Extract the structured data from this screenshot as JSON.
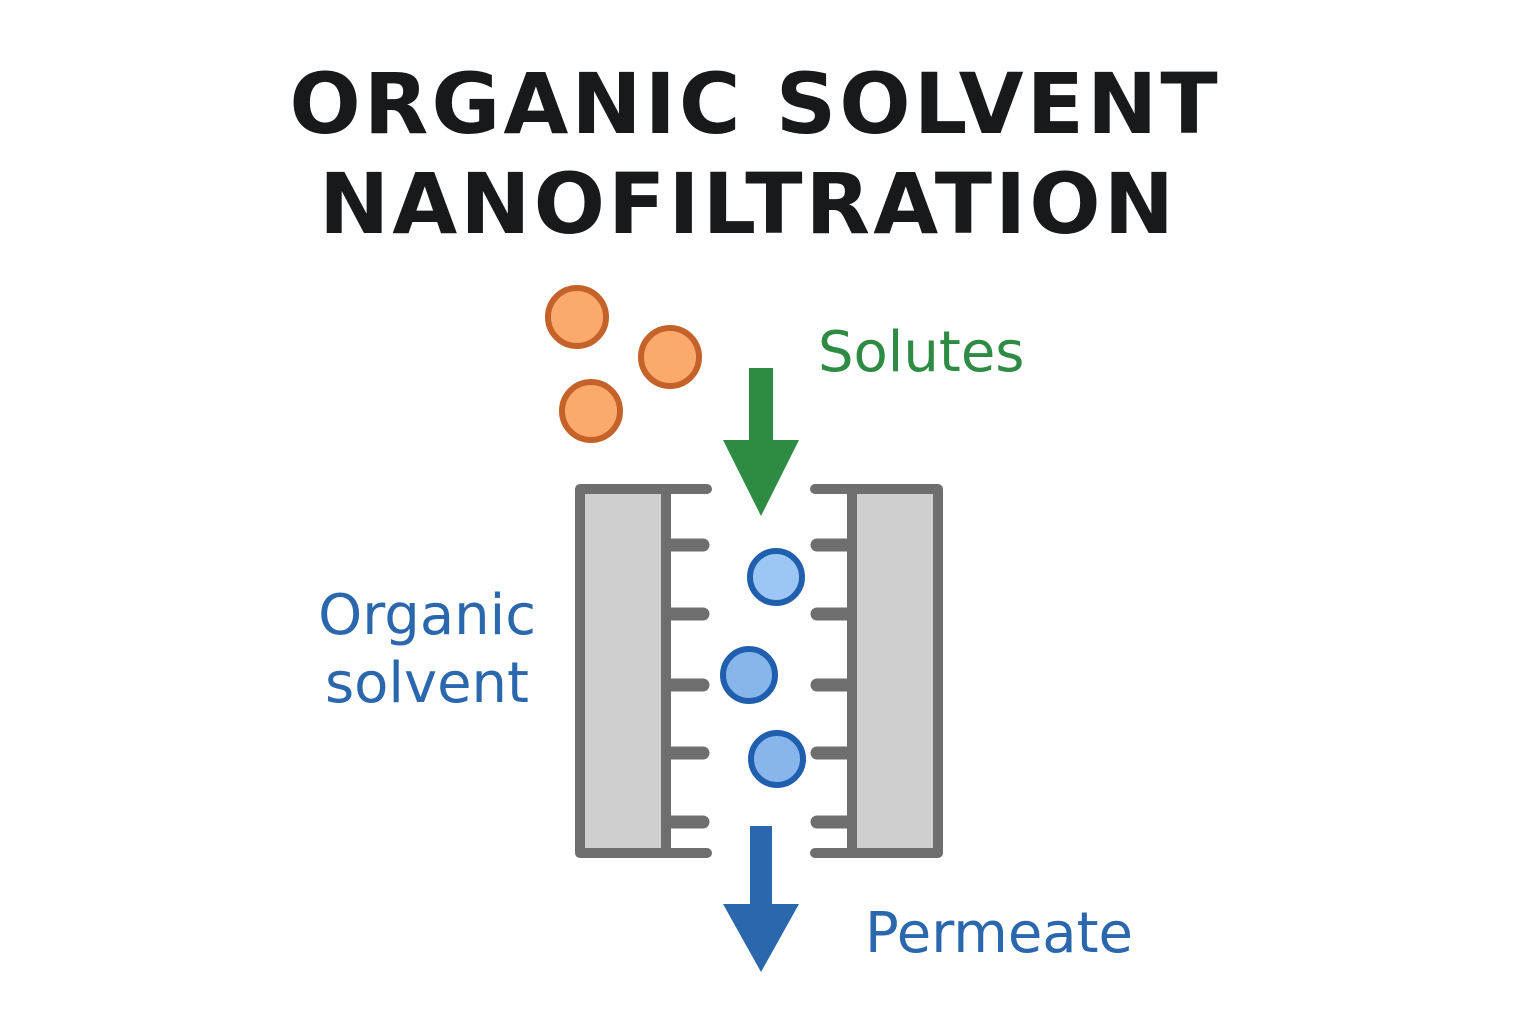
{
  "title": {
    "line1": "ORGANIC SOLVENT",
    "line2": "NANOFILTRATION"
  },
  "labels": {
    "solutes": "Solutes",
    "organic_solvent_line1": "Organic",
    "organic_solvent_line2": "solvent",
    "permeate": "Permeate"
  },
  "colors": {
    "title": "#17191b",
    "solutes_green": "#2e8b44",
    "solvent_blue": "#2a67ad",
    "solute_fill": "#fca96e",
    "solute_stroke": "#c4622a",
    "molecule_fill": "#8fbdf0",
    "molecule_stroke": "#1f5fae",
    "membrane_frame": "#6e6e6e",
    "membrane_fill": "#cfcfcf"
  },
  "icons": {
    "solute_particle": "orange-circle",
    "solvent_molecule": "blue-circle",
    "feed_arrow": "down-arrow",
    "permeate_arrow": "down-arrow"
  }
}
